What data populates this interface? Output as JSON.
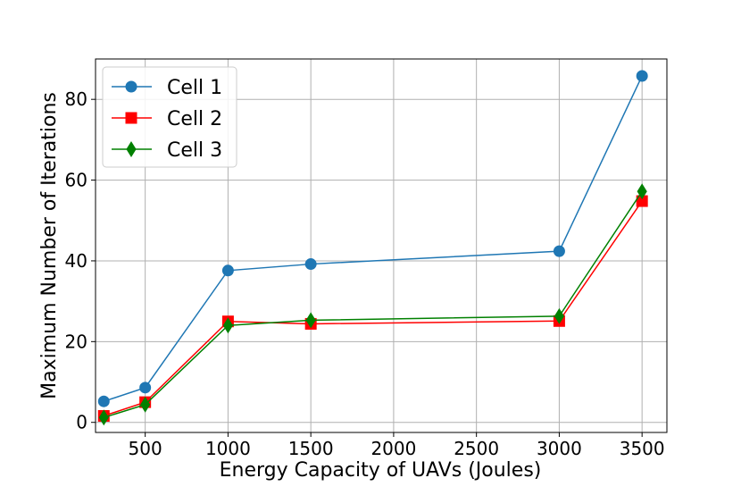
{
  "chart_data": {
    "type": "line",
    "title": "",
    "xlabel": "Energy Capacity of UAVs (Joules)",
    "ylabel": "Maximum Number of Iterations",
    "xlim": [
      200,
      3650
    ],
    "ylim": [
      -2.5,
      90
    ],
    "xticks": [
      500,
      1000,
      1500,
      2000,
      2500,
      3000,
      3500
    ],
    "yticks": [
      0,
      20,
      40,
      60,
      80
    ],
    "grid": true,
    "legend_position": "upper-left",
    "x": [
      250,
      500,
      1000,
      1500,
      3000,
      3500
    ],
    "series": [
      {
        "name": "Cell 1",
        "color": "#1f77b4",
        "marker": "circle",
        "values": [
          5.2,
          8.6,
          37.6,
          39.2,
          42.4,
          85.8
        ]
      },
      {
        "name": "Cell 2",
        "color": "#ff0000",
        "marker": "square",
        "values": [
          1.6,
          5.0,
          25.0,
          24.4,
          25.1,
          54.8
        ]
      },
      {
        "name": "Cell 3",
        "color": "#008000",
        "marker": "diamond",
        "values": [
          1.2,
          4.4,
          24.0,
          25.3,
          26.3,
          57.2
        ]
      }
    ]
  }
}
